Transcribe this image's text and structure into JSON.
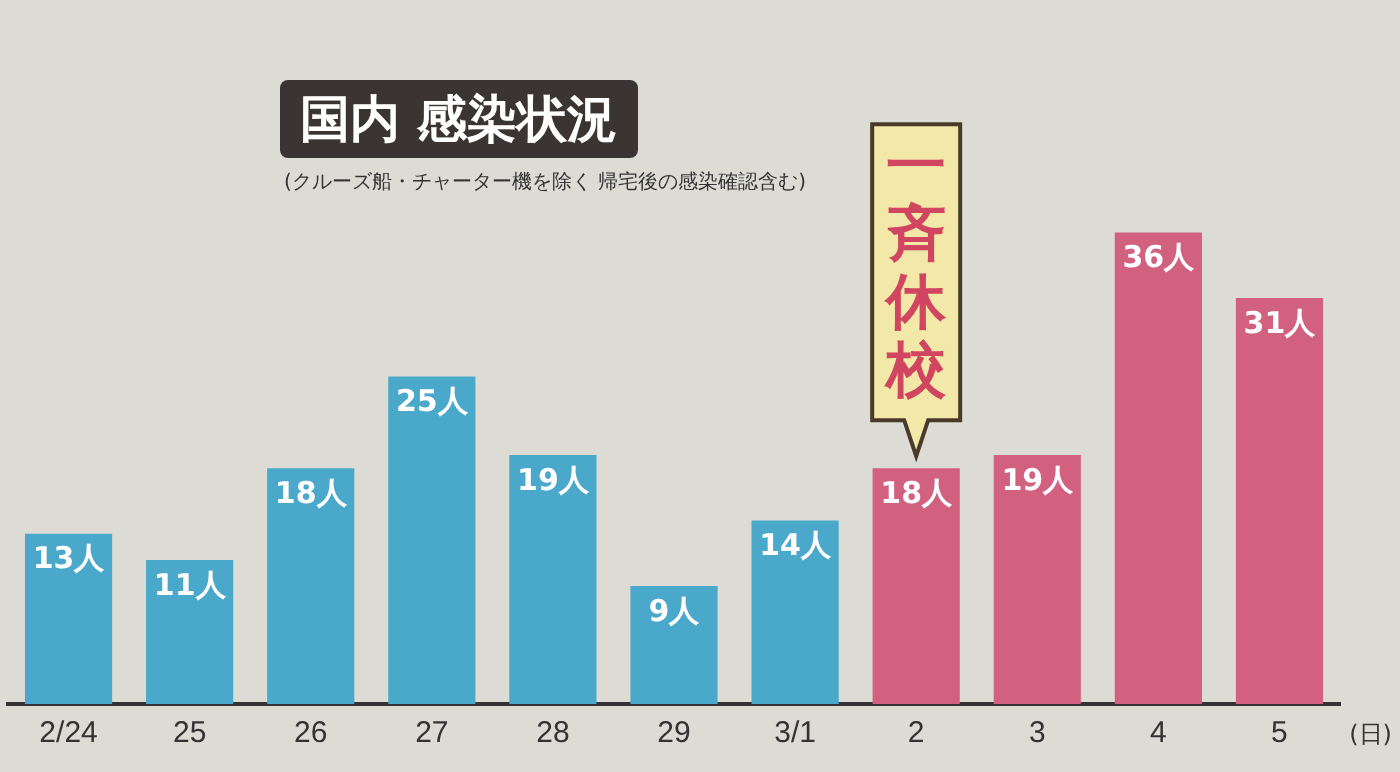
{
  "chart_data": {
    "type": "bar",
    "title": "国内 感染状況",
    "subtitle": "(クルーズ船・チャーター機を除く 帰宅後の感染確認含む)",
    "xlabel": "(日)",
    "categories": [
      "2/24",
      "25",
      "26",
      "27",
      "28",
      "29",
      "3/1",
      "2",
      "3",
      "4",
      "5"
    ],
    "values": [
      13,
      11,
      18,
      25,
      19,
      9,
      14,
      18,
      19,
      36,
      31
    ],
    "colors": [
      "#4aa8cb",
      "#4aa8cb",
      "#4aa8cb",
      "#4aa8cb",
      "#4aa8cb",
      "#4aa8cb",
      "#4aa8cb",
      "#d2607f",
      "#d2607f",
      "#d2607f",
      "#d2607f"
    ],
    "value_labels": [
      "13人",
      "11人",
      "18人",
      "25人",
      "19人",
      "9人",
      "14人",
      "18人",
      "19人",
      "36人",
      "31人"
    ],
    "annotations": [
      {
        "text": "一斉休校",
        "x": "2",
        "y": 18
      }
    ],
    "grid": false,
    "legend": false,
    "tick_labels": "x"
  }
}
